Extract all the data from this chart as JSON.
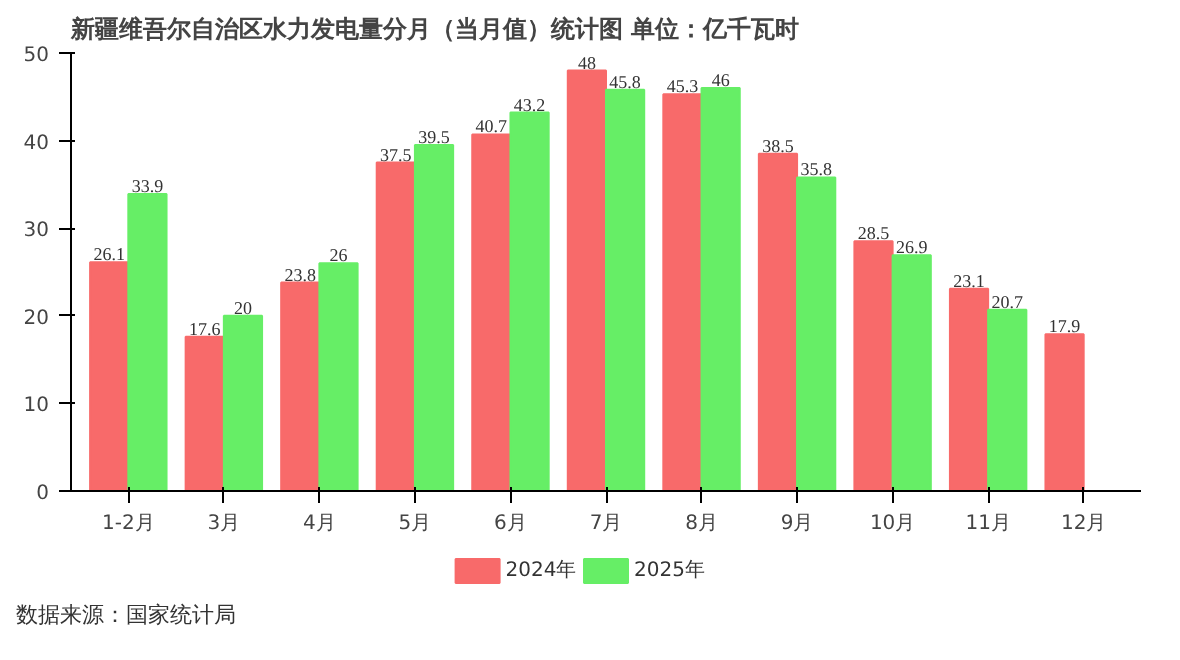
{
  "chart_data": {
    "type": "bar",
    "title": "新疆维吾尔自治区水力发电量分月（当月值）统计图 单位：亿千瓦时",
    "categories": [
      "1-2月",
      "3月",
      "4月",
      "5月",
      "6月",
      "7月",
      "8月",
      "9月",
      "10月",
      "11月",
      "12月"
    ],
    "series": [
      {
        "name": "2024年",
        "color": "#f86a6a",
        "values": [
          26.1,
          17.6,
          23.8,
          37.5,
          40.7,
          48,
          45.3,
          38.5,
          28.5,
          23.1,
          17.9
        ]
      },
      {
        "name": "2025年",
        "color": "#66ee66",
        "values": [
          33.9,
          20,
          26,
          39.5,
          43.2,
          45.8,
          46,
          35.8,
          26.9,
          20.7,
          null
        ]
      }
    ],
    "ylim": [
      0,
      50
    ],
    "yticks": [
      0,
      10,
      20,
      30,
      40,
      50
    ],
    "grid": false,
    "legend": "bottom",
    "data_labels": true,
    "annotations": [
      "数据来源：国家统计局"
    ]
  }
}
